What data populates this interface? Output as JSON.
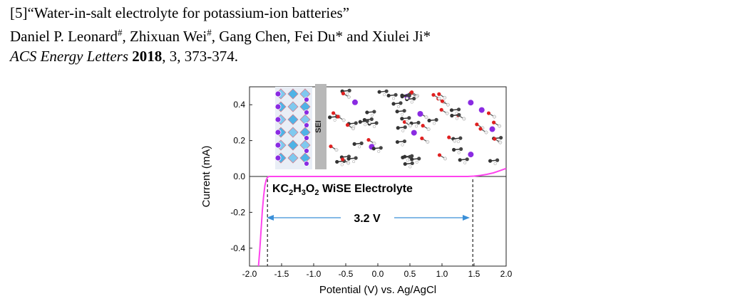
{
  "citation": {
    "line1": "[5]“Water-in-salt electrolyte for potassium-ion batteries”",
    "authors": [
      {
        "name": "Daniel P. Leonard",
        "mark": "#",
        "sep": ", "
      },
      {
        "name": "Zhixuan Wei",
        "mark": "#",
        "sep": ", "
      },
      {
        "name": "Gang Chen",
        "mark": "",
        "sep": ", "
      },
      {
        "name": "Fei Du*",
        "mark": "",
        "sep": " and "
      },
      {
        "name": "Xiulei Ji*",
        "mark": "",
        "sep": ""
      }
    ],
    "journal": "ACS Energy Letters",
    "year": "2018",
    "rest": ", 3, 373-374."
  },
  "inset": {
    "sei_label": "SEI"
  },
  "chart_data": {
    "type": "line",
    "xlabel": "Potential (V) vs. Ag/AgCl",
    "ylabel": "Current (mA)",
    "xlim": [
      -2.0,
      2.0
    ],
    "ylim": [
      -0.5,
      0.5
    ],
    "xticks": [
      -2.0,
      -1.5,
      -1.0,
      -0.5,
      0.0,
      0.5,
      1.0,
      1.5,
      2.0
    ],
    "xtick_labels": [
      "-2.0",
      "-1.5",
      "-1.0",
      "-0.5",
      "0.0",
      "0.5",
      "1.0",
      "1.5",
      "2.0"
    ],
    "yticks": [
      0.4,
      0.2,
      0.0,
      -0.2,
      -0.4
    ],
    "ytick_labels": [
      "0.4",
      "0.2",
      "0.0",
      "-0.2",
      "-0.4"
    ],
    "series": [
      {
        "color": "#ff44ee",
        "x": [
          -1.86,
          -1.84,
          -1.82,
          -1.8,
          -1.78,
          -1.76,
          -1.74,
          -1.72,
          -1.7,
          -1.65,
          -1.5,
          -1.0,
          0.0,
          1.0,
          1.4,
          1.5,
          1.6,
          1.7,
          1.8,
          1.9,
          2.0
        ],
        "y": [
          -0.5,
          -0.41,
          -0.3,
          -0.19,
          -0.11,
          -0.05,
          -0.02,
          -0.005,
          0.0,
          0.0,
          0.0,
          0.0,
          0.0,
          0.0,
          0.0,
          0.002,
          0.006,
          0.012,
          0.02,
          0.032,
          0.045
        ]
      }
    ],
    "vlines": [
      -1.72,
      1.48
    ],
    "annotations": {
      "electrolyte_prefix": "KC",
      "electrolyte_parts": [
        {
          "t": "2",
          "sub": true
        },
        {
          "t": "H",
          "sub": false
        },
        {
          "t": "3",
          "sub": true
        },
        {
          "t": "O",
          "sub": false
        },
        {
          "t": "2",
          "sub": true
        },
        {
          "t": " WiSE Electrolyte",
          "sub": false
        }
      ],
      "window_label": "3.2 V"
    }
  }
}
